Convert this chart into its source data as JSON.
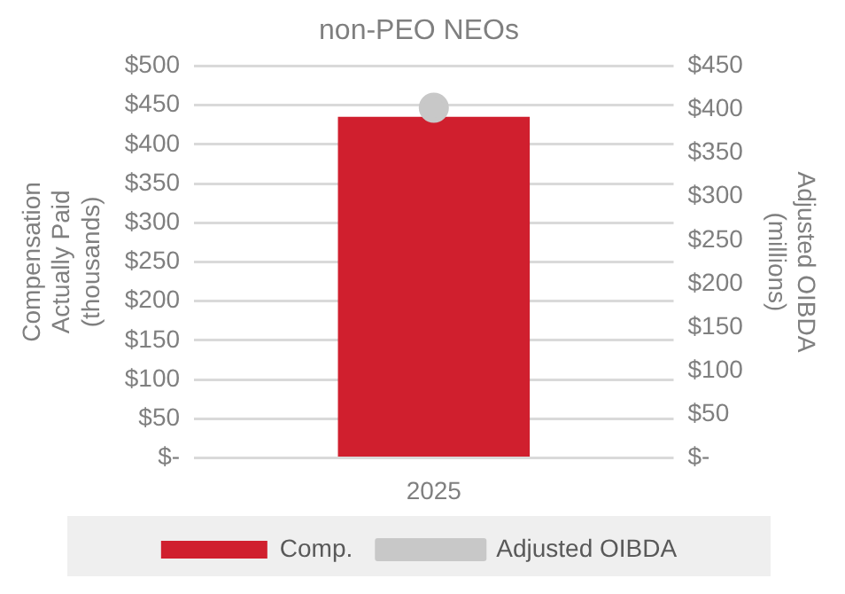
{
  "chart_data": {
    "type": "bar",
    "title": "non-PEO NEOs",
    "ylabel": "Compensation\nActually Paid\n(thousands)",
    "y2label": "Adjusted OIBDA\n(millions)",
    "categories": [
      "2025"
    ],
    "series": [
      {
        "name": "Comp.",
        "color": "#d01f2e",
        "values": [
          435
        ]
      },
      {
        "name": "Adjusted OIBDA",
        "type": "line",
        "axis": "y2",
        "color": "#c8c8c8",
        "values": [
          402
        ]
      }
    ],
    "ylim": [
      0,
      500
    ],
    "yticks": [
      {
        "value": 0,
        "label": "$-"
      },
      {
        "value": 50,
        "label": "$50"
      },
      {
        "value": 100,
        "label": "$100"
      },
      {
        "value": 150,
        "label": "$150"
      },
      {
        "value": 200,
        "label": "$200"
      },
      {
        "value": 250,
        "label": "$250"
      },
      {
        "value": 300,
        "label": "$300"
      },
      {
        "value": 350,
        "label": "$350"
      },
      {
        "value": 400,
        "label": "$400"
      },
      {
        "value": 450,
        "label": "$450"
      },
      {
        "value": 500,
        "label": "$500"
      }
    ],
    "y2lim": [
      0,
      450
    ],
    "y2ticks": [
      {
        "value": 0,
        "label": "$-"
      },
      {
        "value": 50,
        "label": "$50"
      },
      {
        "value": 100,
        "label": "$100"
      },
      {
        "value": 150,
        "label": "$150"
      },
      {
        "value": 200,
        "label": "$200"
      },
      {
        "value": 250,
        "label": "$250"
      },
      {
        "value": 300,
        "label": "$300"
      },
      {
        "value": 350,
        "label": "$350"
      },
      {
        "value": 400,
        "label": "$400"
      },
      {
        "value": 450,
        "label": "$450"
      }
    ],
    "grid": "y",
    "legend": "bottom",
    "marker": "circle"
  }
}
